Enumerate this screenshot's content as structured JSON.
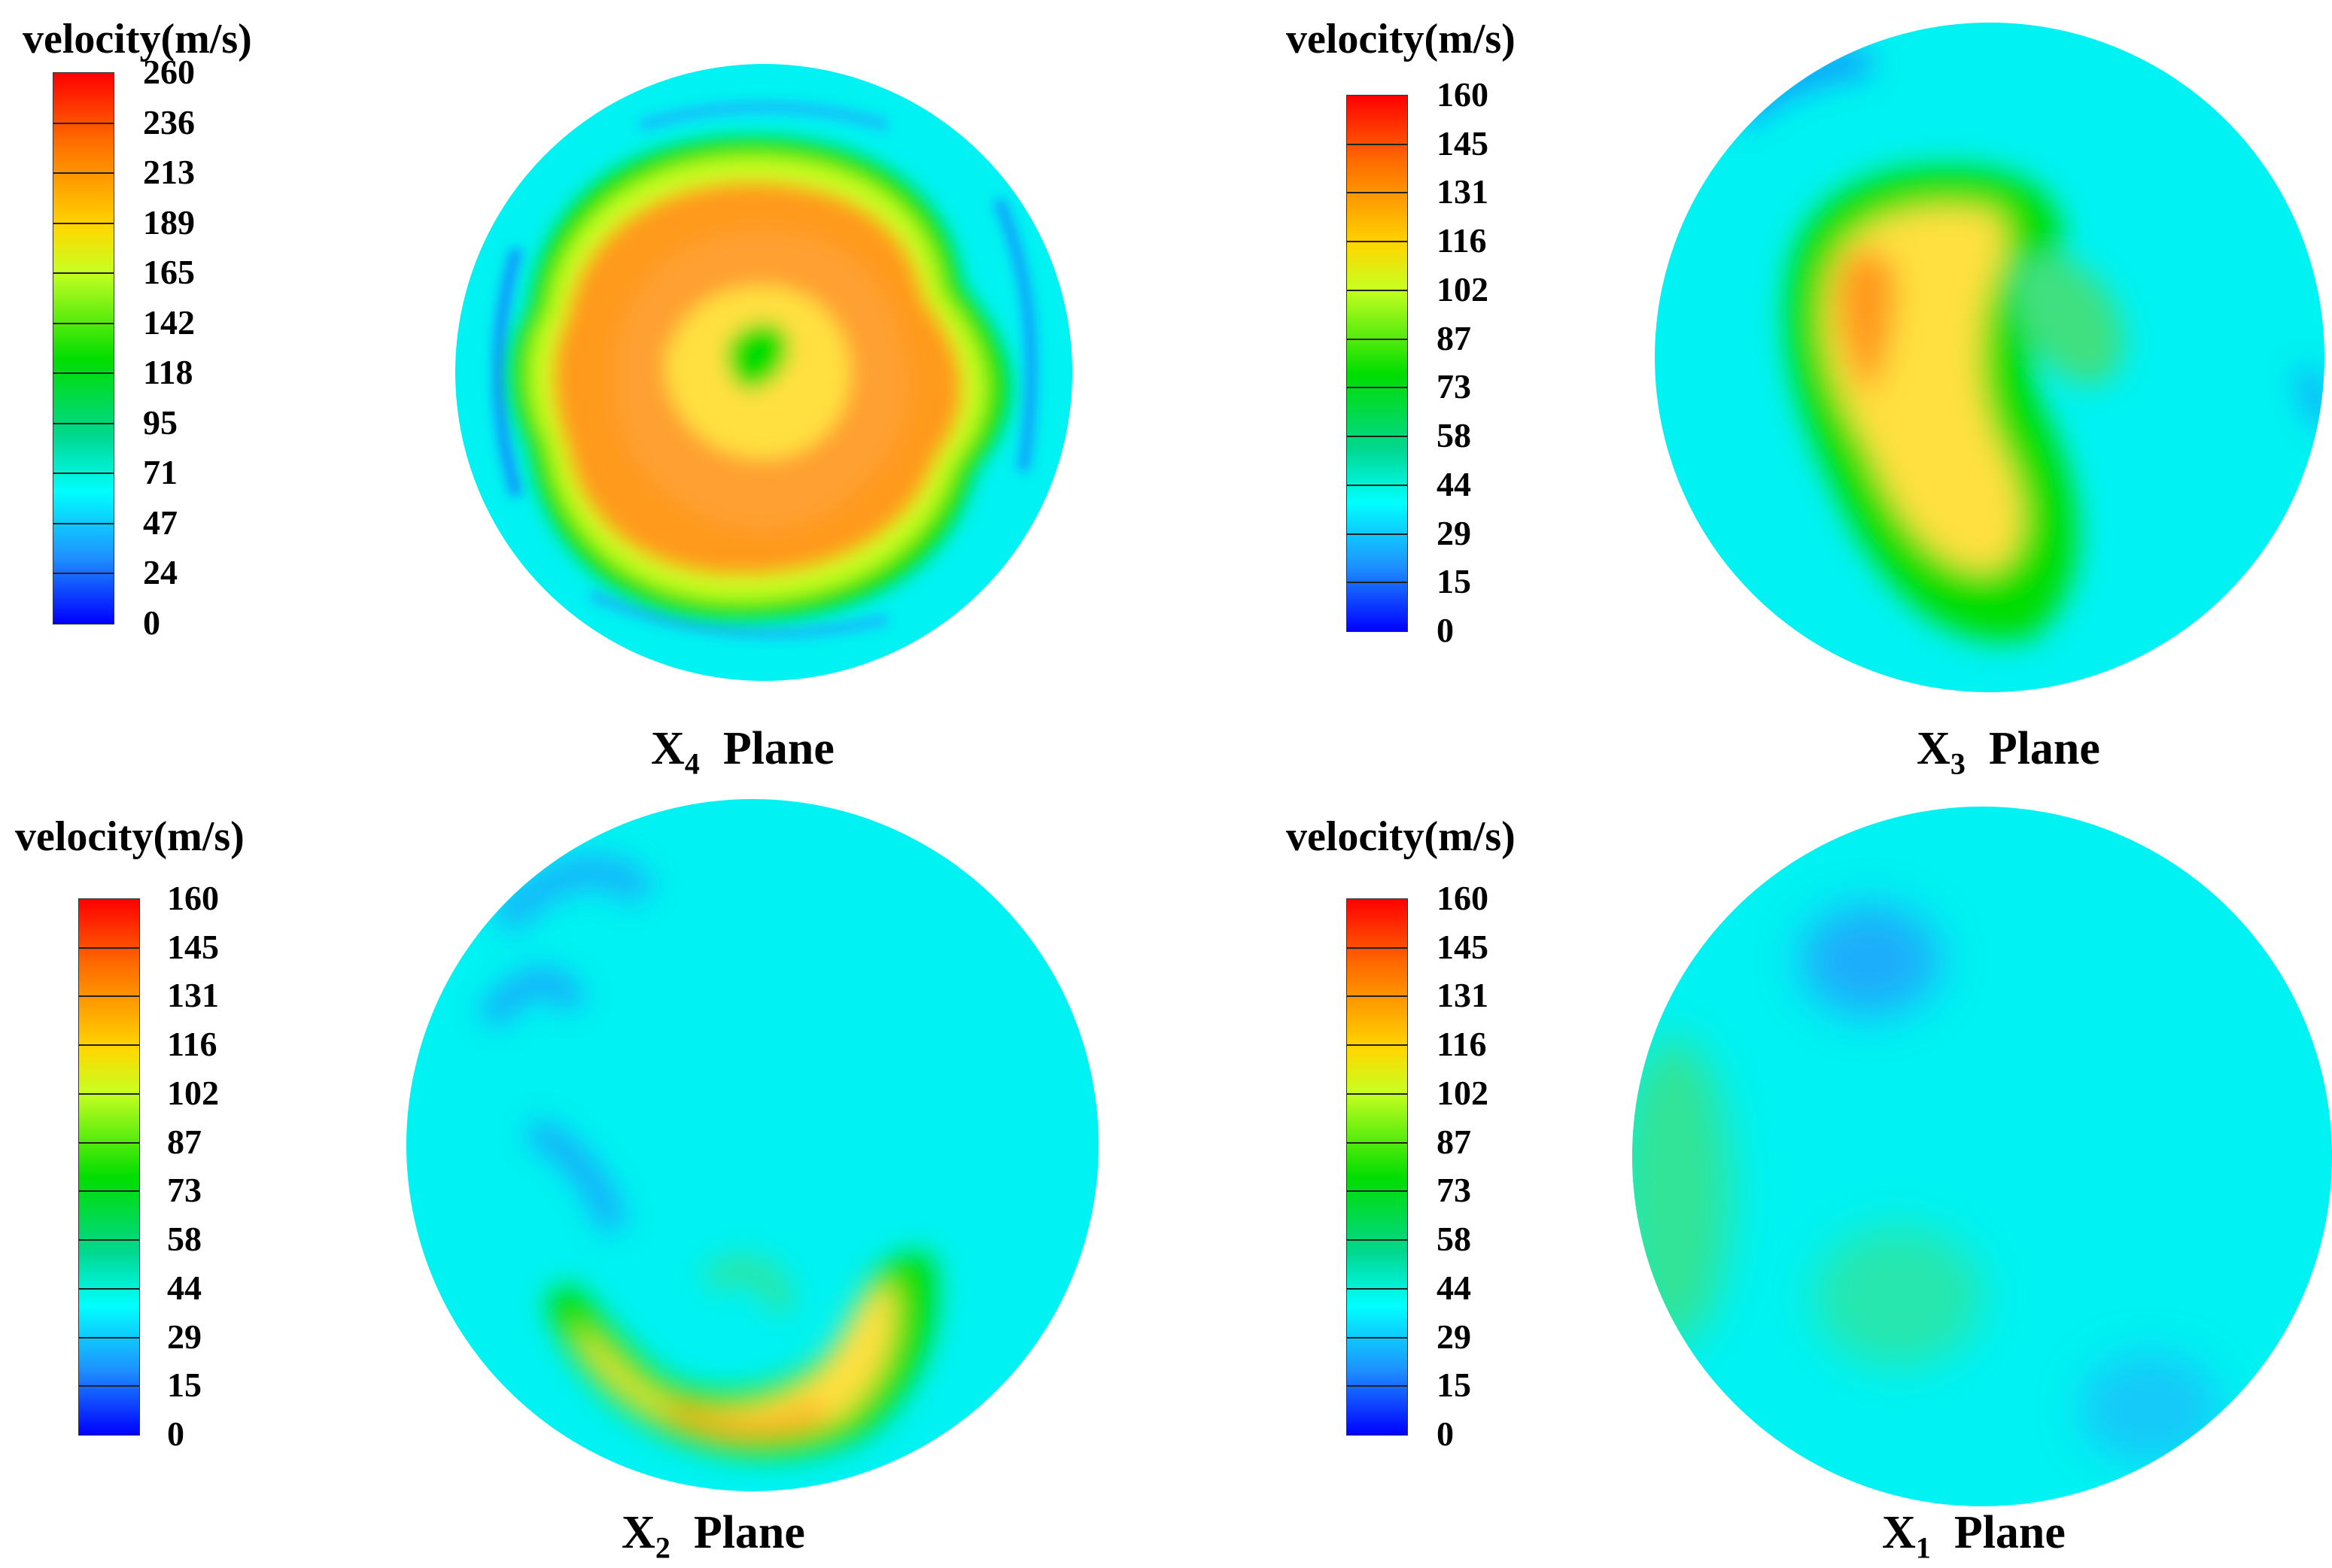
{
  "chart_data": [
    {
      "type": "heatmap",
      "plane": {
        "prefix": "X",
        "sub": "4",
        "suffix": "Plane"
      },
      "colorbar": {
        "title": "velocity(m/s)",
        "ticks": [
          "260",
          "236",
          "213",
          "189",
          "165",
          "142",
          "118",
          "95",
          "71",
          "47",
          "24",
          "0"
        ],
        "range": [
          0,
          260
        ]
      }
    },
    {
      "type": "heatmap",
      "plane": {
        "prefix": "X",
        "sub": "3",
        "suffix": "Plane"
      },
      "colorbar": {
        "title": "velocity(m/s)",
        "ticks": [
          "160",
          "145",
          "131",
          "116",
          "102",
          "87",
          "73",
          "58",
          "44",
          "29",
          "15",
          "0"
        ],
        "range": [
          0,
          160
        ]
      }
    },
    {
      "type": "heatmap",
      "plane": {
        "prefix": "X",
        "sub": "2",
        "suffix": "Plane"
      },
      "colorbar": {
        "title": "velocity(m/s)",
        "ticks": [
          "160",
          "145",
          "131",
          "116",
          "102",
          "87",
          "73",
          "58",
          "44",
          "29",
          "15",
          "0"
        ],
        "range": [
          0,
          160
        ]
      }
    },
    {
      "type": "heatmap",
      "plane": {
        "prefix": "X",
        "sub": "1",
        "suffix": "Plane"
      },
      "colorbar": {
        "title": "velocity(m/s)",
        "ticks": [
          "160",
          "145",
          "131",
          "116",
          "102",
          "87",
          "73",
          "58",
          "44",
          "29",
          "15",
          "0"
        ],
        "range": [
          0,
          160
        ]
      }
    }
  ],
  "colors": {
    "scale": [
      "#0000ff",
      "#1e90ff",
      "#00ffff",
      "#00d890",
      "#00dd00",
      "#c8ff20",
      "#ffd700",
      "#ff6a00",
      "#ff0000"
    ],
    "field_background": "#00f2f2"
  }
}
